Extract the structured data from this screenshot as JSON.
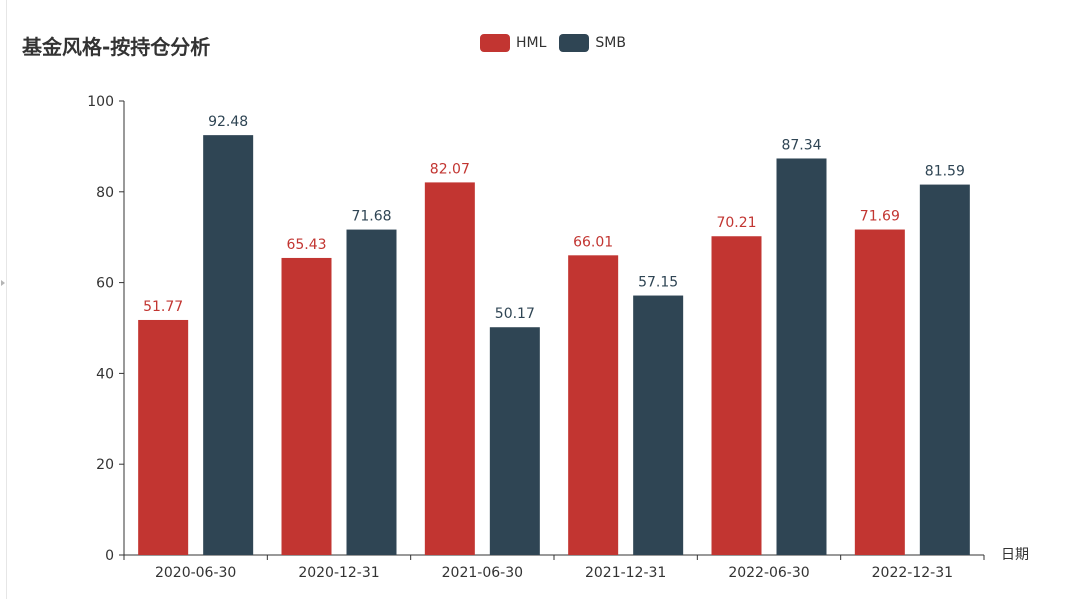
{
  "title": "基金风格-按持仓分析",
  "colors": {
    "HML": "#c23531",
    "SMB": "#2f4554",
    "axis": "#333333"
  },
  "legend": [
    {
      "name": "HML",
      "color": "#c23531"
    },
    {
      "name": "SMB",
      "color": "#2f4554"
    }
  ],
  "chart_data": {
    "type": "bar",
    "title": "基金风格-按持仓分析",
    "xlabel": "日期",
    "ylabel": "",
    "ylim": [
      0,
      100
    ],
    "yticks": [
      0,
      20,
      40,
      60,
      80,
      100
    ],
    "categories": [
      "2020-06-30",
      "2020-12-31",
      "2021-06-30",
      "2021-12-31",
      "2022-06-30",
      "2022-12-31"
    ],
    "series": [
      {
        "name": "HML",
        "color": "#c23531",
        "values": [
          51.77,
          65.43,
          82.07,
          66.01,
          70.21,
          71.69
        ]
      },
      {
        "name": "SMB",
        "color": "#2f4554",
        "values": [
          92.48,
          71.68,
          50.17,
          57.15,
          87.34,
          81.59
        ]
      }
    ],
    "legend_position": "top-center",
    "grid": false
  }
}
